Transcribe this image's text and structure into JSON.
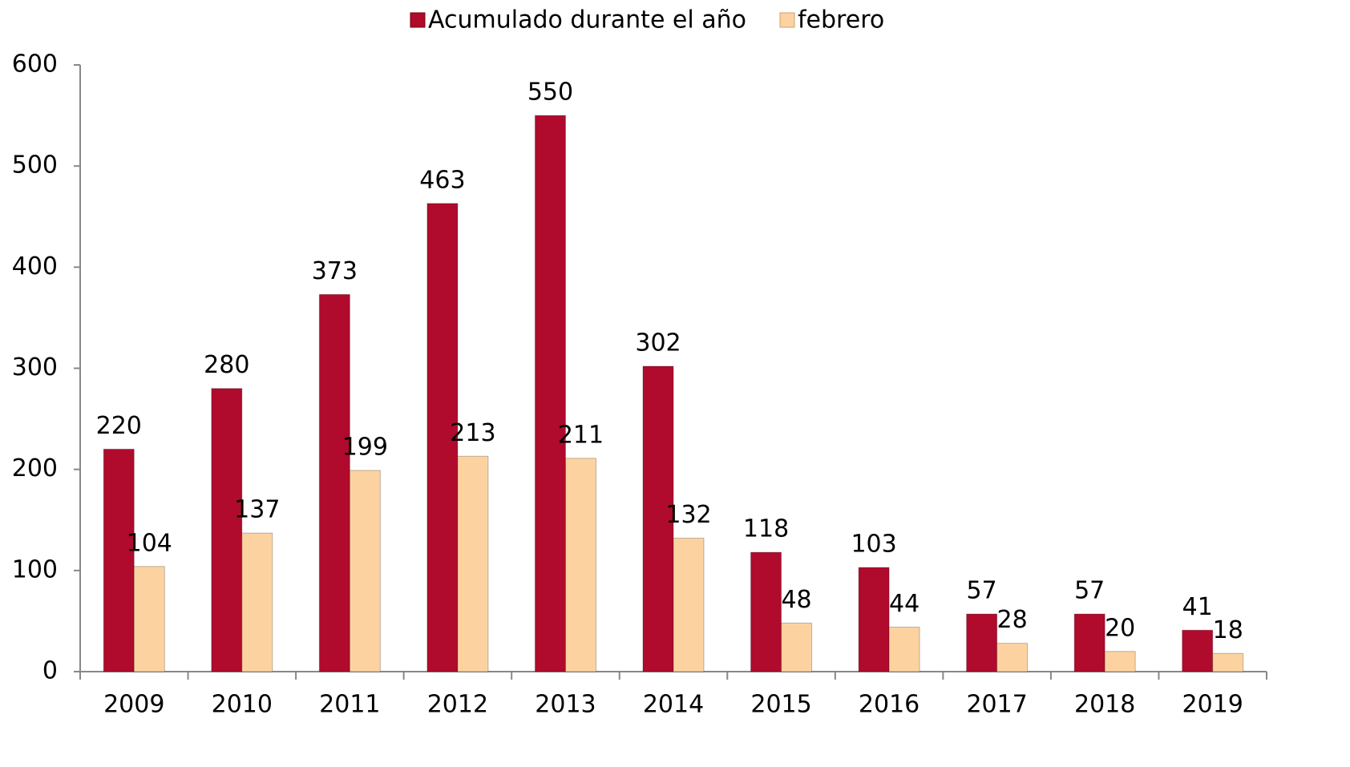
{
  "chart_data": {
    "type": "bar",
    "categories": [
      "2009",
      "2010",
      "2011",
      "2012",
      "2013",
      "2014",
      "2015",
      "2016",
      "2017",
      "2018",
      "2019"
    ],
    "series": [
      {
        "name": "Acumulado durante el año",
        "color": "#b00a2c",
        "values": [
          220,
          280,
          373,
          463,
          550,
          302,
          118,
          103,
          57,
          57,
          41
        ]
      },
      {
        "name": "febrero",
        "color": "#fcd3a0",
        "values": [
          104,
          137,
          199,
          213,
          211,
          132,
          48,
          44,
          28,
          20,
          18
        ]
      }
    ],
    "ylim": [
      0,
      600
    ],
    "yticks": [
      0,
      100,
      200,
      300,
      400,
      500,
      600
    ],
    "grid": false,
    "legend": "top"
  }
}
